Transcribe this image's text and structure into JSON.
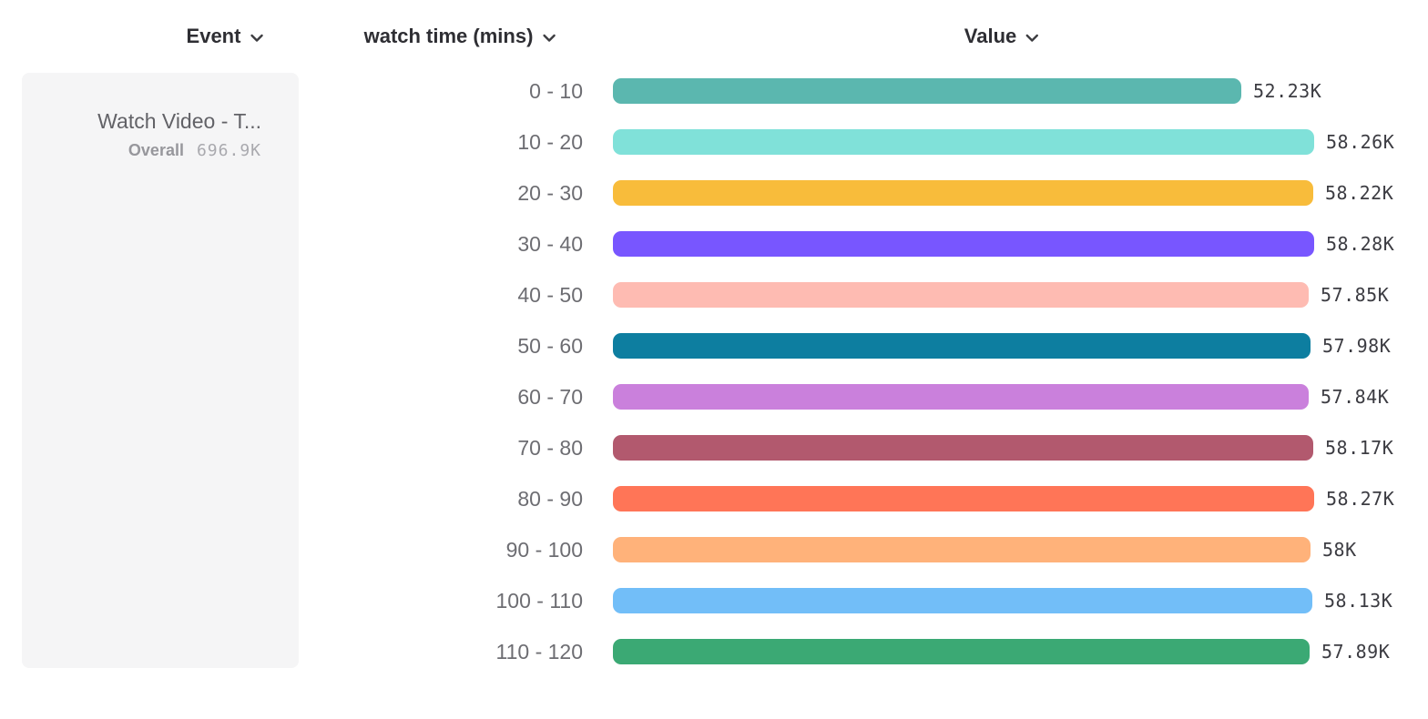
{
  "columns": {
    "event": "Event",
    "breakdown": "watch time (mins)",
    "value": "Value"
  },
  "legend": {
    "event_name": "Watch Video - T...",
    "overall_label": "Overall",
    "overall_value": "696.9K"
  },
  "chart_data": {
    "type": "bar",
    "orientation": "horizontal",
    "title": "",
    "xlabel": "Value",
    "ylabel": "watch time (mins)",
    "series_name": "Watch Video - T...",
    "overall_total": "696.9K",
    "categories": [
      "0 - 10",
      "10 - 20",
      "20 - 30",
      "30 - 40",
      "40 - 50",
      "50 - 60",
      "60 - 70",
      "70 - 80",
      "80 - 90",
      "90 - 100",
      "100 - 110",
      "110 - 120"
    ],
    "values": [
      52230,
      58260,
      58220,
      58280,
      57850,
      57980,
      57840,
      58170,
      58270,
      58000,
      58130,
      57890
    ],
    "value_labels": [
      "52.23K",
      "58.26K",
      "58.22K",
      "58.28K",
      "57.85K",
      "57.98K",
      "57.84K",
      "58.17K",
      "58.27K",
      "58K",
      "58.13K",
      "57.89K"
    ],
    "bar_colors": [
      "#5BB7AF",
      "#80E1D9",
      "#F8BC3B",
      "#7856FF",
      "#FEBBB2",
      "#0D7EA0",
      "#CA80DC",
      "#B2596E",
      "#FF7557",
      "#FFB27A",
      "#72BEF8",
      "#3BA974"
    ],
    "xlim": [
      0,
      58280
    ],
    "grid": false,
    "legend_position": "left"
  },
  "colors": {
    "header_text": "#2e2e33",
    "category_text": "#6d6d72",
    "value_text": "#3c3c42",
    "card_bg": "#f5f5f6",
    "page_bg": "#ffffff"
  }
}
